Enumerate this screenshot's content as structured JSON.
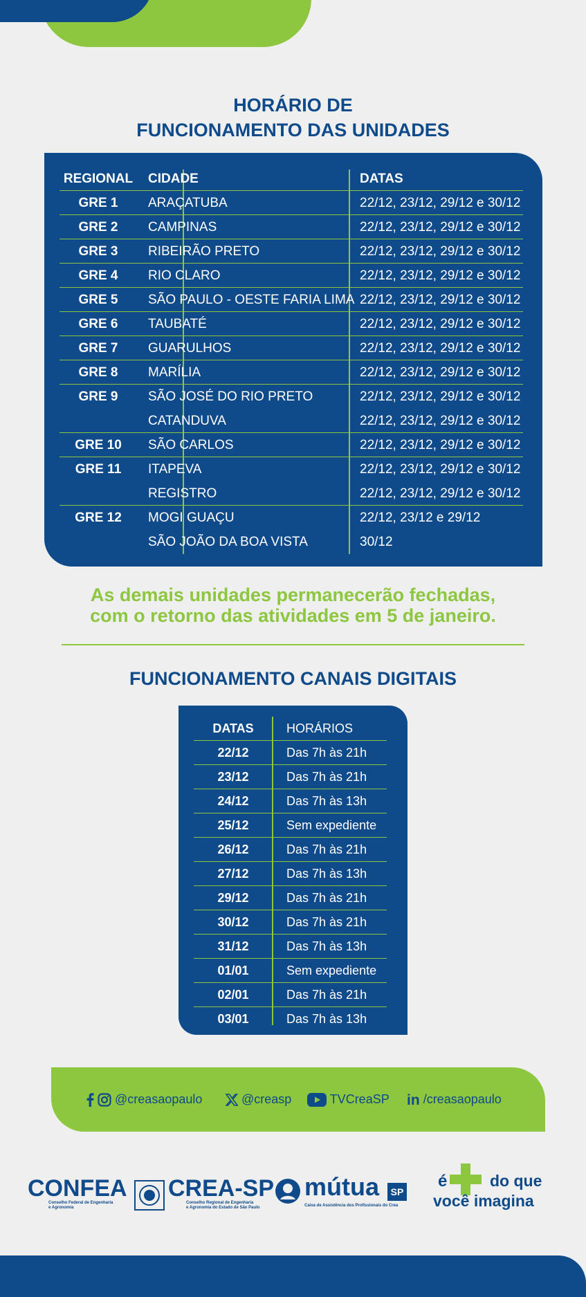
{
  "header": {
    "title_line1": "HORÁRIO DE",
    "title_line2": "FUNCIONAMENTO DAS UNIDADES"
  },
  "units_table": {
    "headers": {
      "regional": "REGIONAL",
      "city": "CIDADE",
      "dates": "DATAS"
    },
    "rows": [
      {
        "regional": "GRE 1",
        "cities": [
          {
            "city": "ARAÇATUBA",
            "dates": "22/12, 23/12, 29/12 e 30/12"
          }
        ]
      },
      {
        "regional": "GRE 2",
        "cities": [
          {
            "city": "CAMPINAS",
            "dates": "22/12, 23/12, 29/12 e 30/12"
          }
        ]
      },
      {
        "regional": "GRE 3",
        "cities": [
          {
            "city": "RIBEIRÃO PRETO",
            "dates": "22/12, 23/12, 29/12 e 30/12"
          }
        ]
      },
      {
        "regional": "GRE 4",
        "cities": [
          {
            "city": "RIO CLARO",
            "dates": "22/12, 23/12, 29/12 e 30/12"
          }
        ]
      },
      {
        "regional": "GRE 5",
        "cities": [
          {
            "city": "SÃO PAULO - OESTE FARIA LIMA",
            "dates": "22/12, 23/12, 29/12 e 30/12"
          }
        ]
      },
      {
        "regional": "GRE 6",
        "cities": [
          {
            "city": "TAUBATÉ",
            "dates": "22/12, 23/12, 29/12 e 30/12"
          }
        ]
      },
      {
        "regional": "GRE 7",
        "cities": [
          {
            "city": "GUARULHOS",
            "dates": "22/12, 23/12, 29/12 e 30/12"
          }
        ]
      },
      {
        "regional": "GRE 8",
        "cities": [
          {
            "city": "MARÍLIA",
            "dates": "22/12, 23/12, 29/12 e 30/12"
          }
        ]
      },
      {
        "regional": "GRE 9",
        "cities": [
          {
            "city": "SÃO JOSÉ DO RIO PRETO",
            "dates": "22/12, 23/12, 29/12 e 30/12"
          },
          {
            "city": "CATANDUVA",
            "dates": "22/12, 23/12, 29/12 e 30/12"
          }
        ]
      },
      {
        "regional": "GRE 10",
        "cities": [
          {
            "city": "SÃO CARLOS",
            "dates": "22/12, 23/12, 29/12 e 30/12"
          }
        ]
      },
      {
        "regional": "GRE 11",
        "cities": [
          {
            "city": "ITAPEVA",
            "dates": "22/12, 23/12, 29/12 e 30/12"
          },
          {
            "city": "REGISTRO",
            "dates": "22/12, 23/12, 29/12 e 30/12"
          }
        ]
      },
      {
        "regional": "GRE 12",
        "cities": [
          {
            "city": "MOGI GUAÇU",
            "dates": "22/12, 23/12 e 29/12"
          },
          {
            "city": "SÃO JOÃO DA BOA VISTA",
            "dates": "30/12"
          }
        ]
      }
    ]
  },
  "notice": {
    "line1": "As demais unidades permanecerão fechadas,",
    "line2": "com o retorno das atividades em 5 de janeiro."
  },
  "digital": {
    "title": "FUNCIONAMENTO CANAIS DIGITAIS",
    "headers": {
      "dates": "DATAS",
      "hours": "HORÁRIOS"
    },
    "rows": [
      {
        "date": "22/12",
        "hours": "Das 7h às 21h"
      },
      {
        "date": "23/12",
        "hours": "Das 7h às 21h"
      },
      {
        "date": "24/12",
        "hours": "Das 7h às 13h"
      },
      {
        "date": "25/12",
        "hours": "Sem expediente"
      },
      {
        "date": "26/12",
        "hours": "Das 7h às 21h"
      },
      {
        "date": "27/12",
        "hours": "Das 7h às 13h"
      },
      {
        "date": "29/12",
        "hours": "Das 7h às 21h"
      },
      {
        "date": "30/12",
        "hours": "Das 7h às 21h"
      },
      {
        "date": "31/12",
        "hours": "Das 7h às 13h"
      },
      {
        "date": "01/01",
        "hours": "Sem expediente"
      },
      {
        "date": "02/01",
        "hours": "Das 7h às 21h"
      },
      {
        "date": "03/01",
        "hours": "Das 7h às 13h"
      }
    ]
  },
  "social": {
    "facebook_instagram": "@creasaopaulo",
    "x": "@creasp",
    "youtube": "TVCreaSP",
    "linkedin": "/creasaopaulo",
    "icons": [
      "facebook-icon",
      "instagram-icon",
      "x-icon",
      "youtube-icon",
      "linkedin-icon"
    ]
  },
  "logos": {
    "confea": "CONFEA",
    "confea_sub1": "Conselho Federal de Engenharia",
    "confea_sub2": "e Agronomia",
    "creasp": "CREA-SP",
    "creasp_sub1": "Conselho Regional de Engenharia",
    "creasp_sub2": "e Agronomia do Estado de São Paulo",
    "mutua": "mútua",
    "mutua_badge": "SP",
    "mutua_sub": "Caixa de Assistência dos Profissionais do Crea",
    "slogan_e": "é",
    "slogan_do_que": "do que",
    "slogan_voce": "você imagina"
  },
  "colors": {
    "blue": "#0f4a8a",
    "green": "#8dc63f",
    "background": "#efefef"
  }
}
